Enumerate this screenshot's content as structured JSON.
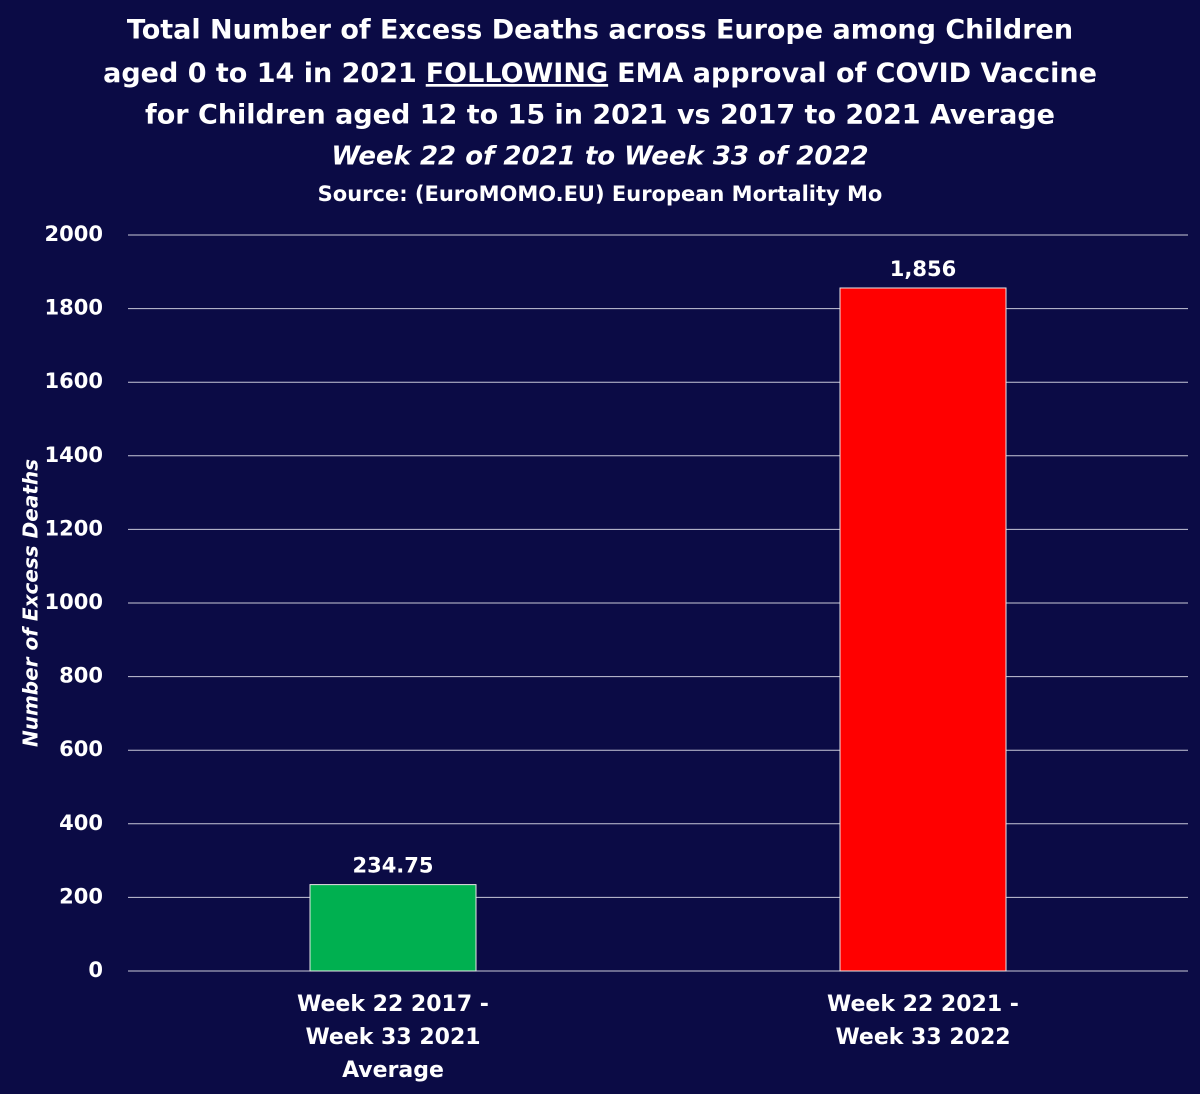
{
  "chart_data": {
    "type": "bar",
    "title": [
      "Total Number of Excess Deaths across Europe among Children",
      [
        "aged 0 to 14 in 2021",
        "FOLLOWING",
        "EMA approval of COVID Vaccine"
      ],
      "for Children aged 12 to 15 in 2021 vs 2017 to 2021 Average"
    ],
    "subtitle": "Week 22 of 2021 to Week 33 of 2022",
    "source": "Source: (EuroMOMO.EU) European Mortality Mo",
    "y_label": "Number of Excess Deaths",
    "categories": [
      [
        "Week 22 2017 -",
        "Week 33 2021",
        "Average"
      ],
      [
        "Week 22 2021 -",
        "Week 33 2022"
      ]
    ],
    "values": [
      234.75,
      1856
    ],
    "value_labels": [
      "234.75",
      "1,856"
    ],
    "colors": [
      "#00b050",
      "#ff0000"
    ],
    "ylim": [
      0,
      2000
    ],
    "yticks": [
      0,
      200,
      400,
      600,
      800,
      1000,
      1200,
      1400,
      1600,
      1800,
      2000
    ],
    "grid": true
  }
}
